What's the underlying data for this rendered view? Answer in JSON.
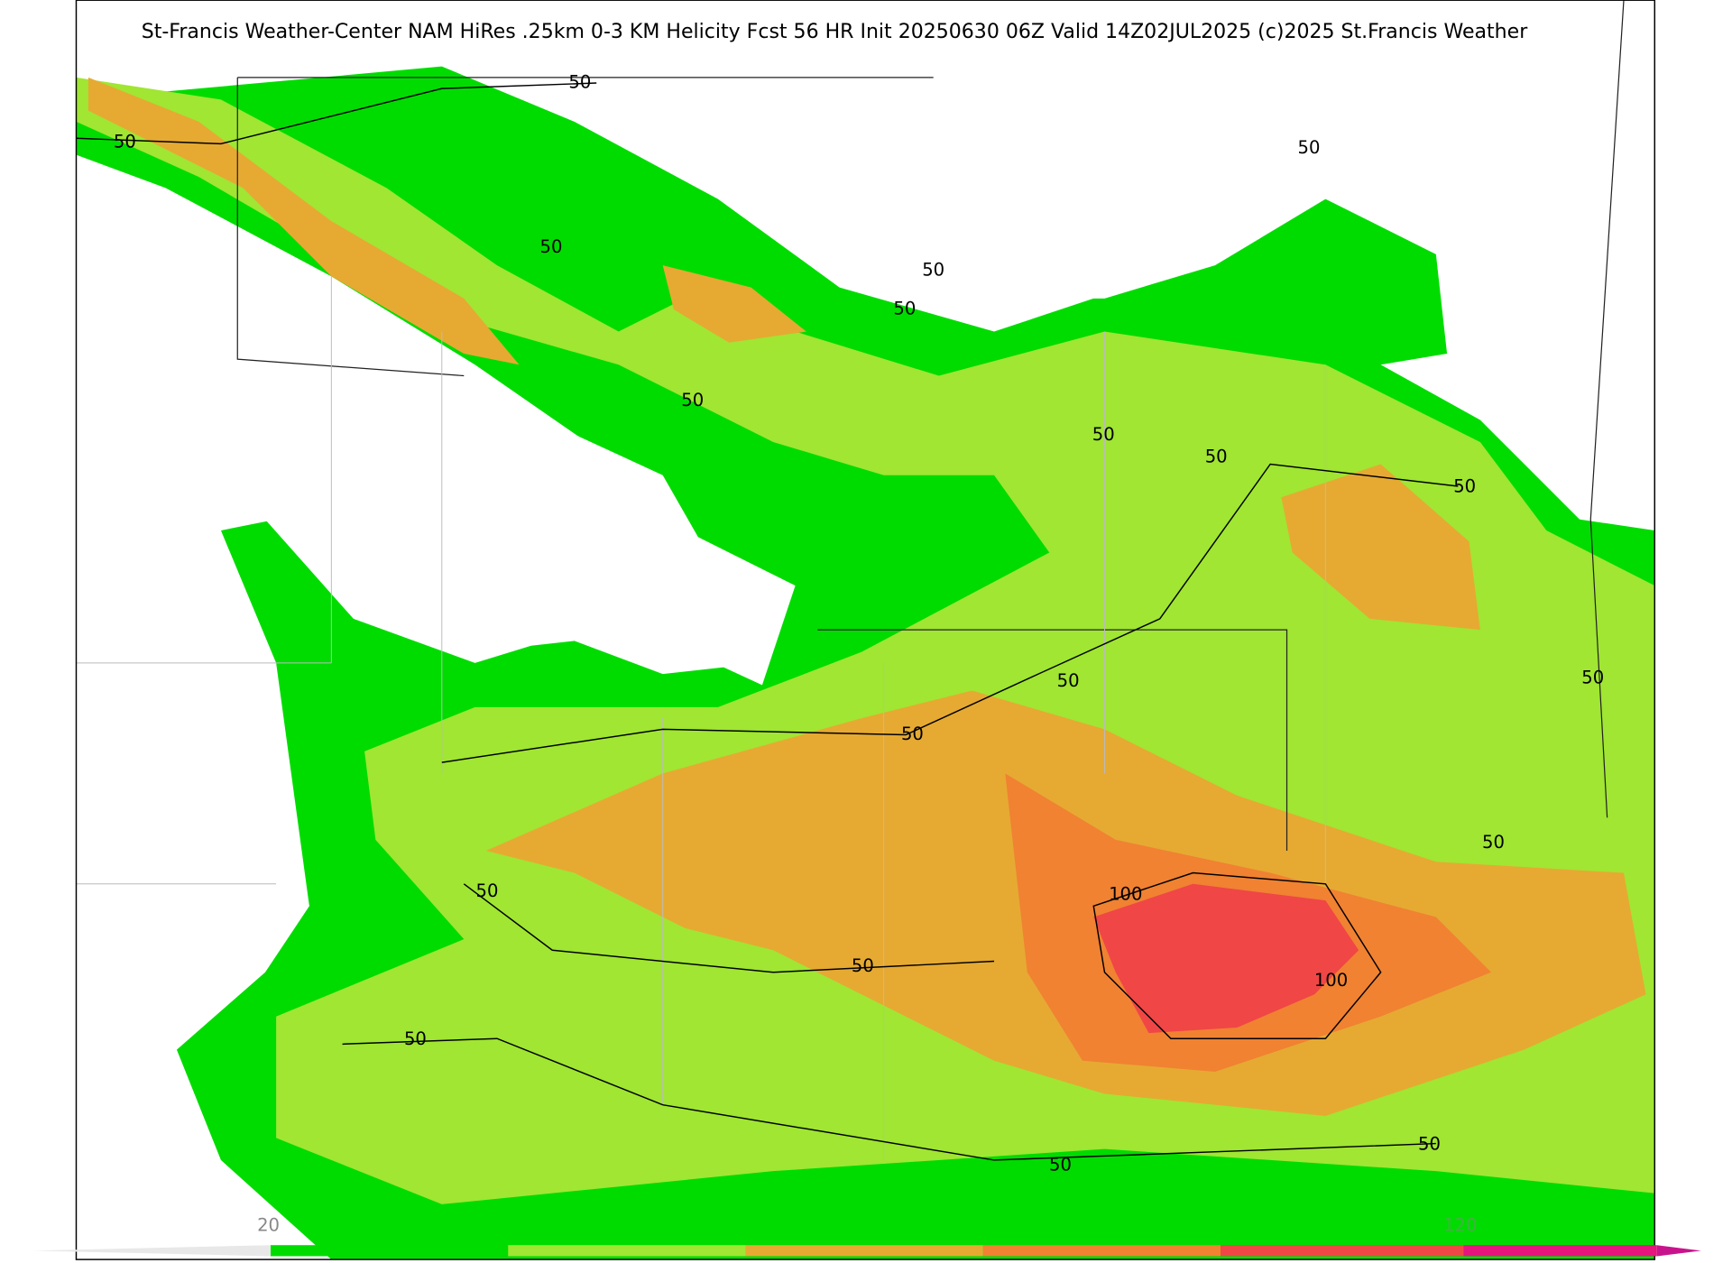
{
  "header": {
    "title": "St-Francis Weather-Center NAM HiRes .25km 0-3 KM Helicity Fcst 56 HR Init 20250630 06Z  Valid 14Z02JUL2025    (c)2025 St.Francis Weather"
  },
  "contour_labels": [
    "50",
    "50",
    "50",
    "50",
    "50",
    "50",
    "50",
    "50",
    "50",
    "50",
    "50",
    "50",
    "50",
    "50",
    "50",
    "50",
    "50",
    "50",
    "50",
    "100",
    "100"
  ],
  "colorbar": {
    "labels": [
      "20",
      "120"
    ]
  }
}
